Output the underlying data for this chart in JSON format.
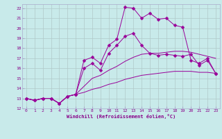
{
  "title": "",
  "xlabel": "Windchill (Refroidissement éolien,°C)",
  "xlim": [
    -0.5,
    23.5
  ],
  "ylim": [
    12,
    22.4
  ],
  "xticks": [
    0,
    1,
    2,
    3,
    4,
    5,
    6,
    7,
    8,
    9,
    10,
    11,
    12,
    13,
    14,
    15,
    16,
    17,
    18,
    19,
    20,
    21,
    22,
    23
  ],
  "yticks": [
    12,
    13,
    14,
    15,
    16,
    17,
    18,
    19,
    20,
    21,
    22
  ],
  "bg_color": "#c8eaea",
  "grid_color": "#b0c8c8",
  "line_color": "#990099",
  "lines": [
    {
      "x": [
        0,
        1,
        2,
        3,
        4,
        5,
        6,
        7,
        8,
        9,
        10,
        11,
        12,
        13,
        14,
        15,
        16,
        17,
        18,
        19,
        20,
        21,
        22,
        23
      ],
      "y": [
        13.0,
        12.8,
        13.0,
        13.0,
        12.5,
        13.2,
        13.4,
        16.8,
        17.1,
        16.5,
        18.3,
        18.9,
        22.1,
        22.0,
        21.0,
        21.5,
        20.9,
        21.0,
        20.3,
        20.1,
        16.8,
        16.5,
        17.0,
        15.5
      ],
      "marker": true,
      "markersize": 2.5
    },
    {
      "x": [
        0,
        1,
        2,
        3,
        4,
        5,
        6,
        7,
        8,
        9,
        10,
        11,
        12,
        13,
        14,
        15,
        16,
        17,
        18,
        19,
        20,
        21,
        22,
        23
      ],
      "y": [
        13.0,
        12.8,
        13.0,
        13.0,
        12.5,
        13.2,
        13.4,
        16.0,
        16.5,
        15.8,
        17.5,
        18.3,
        19.2,
        19.5,
        18.3,
        17.5,
        17.3,
        17.4,
        17.3,
        17.2,
        17.4,
        16.3,
        16.8,
        15.5
      ],
      "marker": true,
      "markersize": 2.5
    },
    {
      "x": [
        0,
        1,
        2,
        3,
        4,
        5,
        6,
        7,
        8,
        9,
        10,
        11,
        12,
        13,
        14,
        15,
        16,
        17,
        18,
        19,
        20,
        21,
        22,
        23
      ],
      "y": [
        13.0,
        12.8,
        13.0,
        13.0,
        12.5,
        13.2,
        13.4,
        14.2,
        15.0,
        15.3,
        15.8,
        16.2,
        16.7,
        17.1,
        17.4,
        17.5,
        17.5,
        17.6,
        17.7,
        17.7,
        17.6,
        17.4,
        17.2,
        17.0
      ],
      "marker": false,
      "markersize": 0
    },
    {
      "x": [
        0,
        1,
        2,
        3,
        4,
        5,
        6,
        7,
        8,
        9,
        10,
        11,
        12,
        13,
        14,
        15,
        16,
        17,
        18,
        19,
        20,
        21,
        22,
        23
      ],
      "y": [
        13.0,
        12.8,
        13.0,
        13.0,
        12.5,
        13.2,
        13.4,
        13.6,
        13.9,
        14.1,
        14.4,
        14.6,
        14.9,
        15.1,
        15.3,
        15.4,
        15.5,
        15.6,
        15.7,
        15.7,
        15.7,
        15.6,
        15.6,
        15.5
      ],
      "marker": false,
      "markersize": 0
    }
  ]
}
